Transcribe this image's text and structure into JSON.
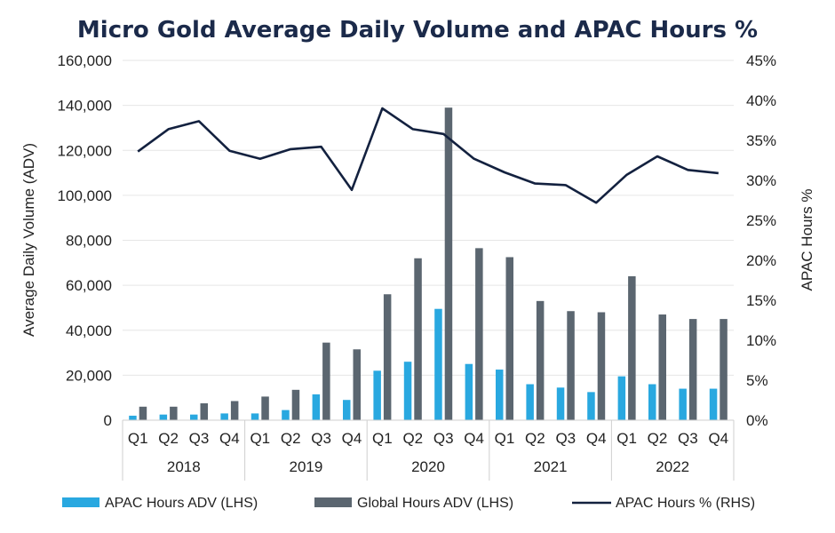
{
  "chart_data": {
    "type": "bar",
    "title": "Micro Gold Average Daily Volume and APAC Hours %",
    "ylabel": "Average Daily Volume (ADV)",
    "y2label": "APAC Hours %",
    "ylim": [
      0,
      160000
    ],
    "y2lim": [
      0,
      45
    ],
    "yticks": [
      "0",
      "20,000",
      "40,000",
      "60,000",
      "80,000",
      "100,000",
      "120,000",
      "140,000",
      "160,000"
    ],
    "y2ticks": [
      "0%",
      "5%",
      "10%",
      "15%",
      "20%",
      "25%",
      "30%",
      "35%",
      "40%",
      "45%"
    ],
    "quarters": [
      "Q1",
      "Q2",
      "Q3",
      "Q4",
      "Q1",
      "Q2",
      "Q3",
      "Q4",
      "Q1",
      "Q2",
      "Q3",
      "Q4",
      "Q1",
      "Q2",
      "Q3",
      "Q4",
      "Q1",
      "Q2",
      "Q3",
      "Q4"
    ],
    "years": [
      "2018",
      "2019",
      "2020",
      "2021",
      "2022"
    ],
    "series": [
      {
        "name": "APAC Hours ADV (LHS)",
        "type": "bar",
        "axis": "left",
        "color": "#29a8e0",
        "values": [
          2000,
          2500,
          2500,
          3000,
          3000,
          4500,
          11500,
          9000,
          22000,
          26000,
          49500,
          25000,
          22500,
          16000,
          14500,
          12500,
          19500,
          16000,
          14000,
          14000
        ]
      },
      {
        "name": "Global Hours ADV (LHS)",
        "type": "bar",
        "axis": "left",
        "color": "#5b6670",
        "values": [
          6000,
          6000,
          7500,
          8500,
          10500,
          13500,
          34500,
          31500,
          56000,
          72000,
          139000,
          76500,
          72500,
          53000,
          48500,
          48000,
          64000,
          47000,
          45000,
          45000
        ]
      },
      {
        "name": "APAC Hours % (RHS)",
        "type": "line",
        "axis": "right",
        "color": "#13213f",
        "values": [
          33.6,
          36.4,
          37.4,
          33.7,
          32.7,
          33.9,
          34.2,
          28.8,
          39.0,
          36.4,
          35.8,
          32.7,
          31.0,
          29.6,
          29.4,
          27.2,
          30.7,
          33.0,
          31.3,
          30.9
        ]
      }
    ],
    "legend": "bottom",
    "grid": true
  }
}
